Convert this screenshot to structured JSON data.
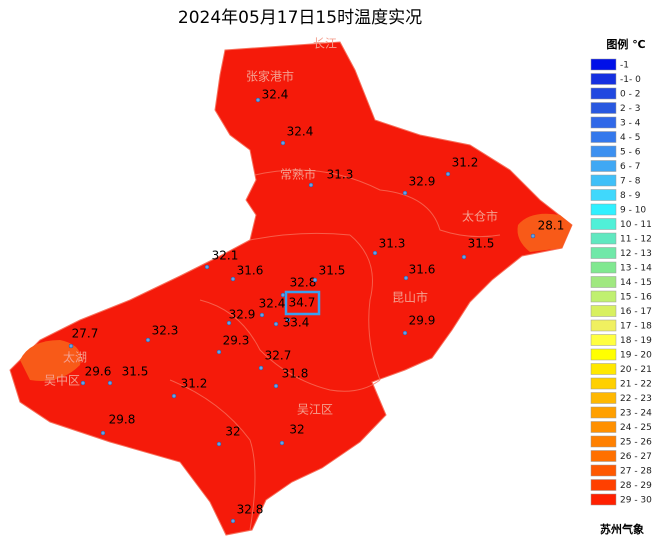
{
  "title": "2024年05月17日15时温度实况",
  "legend": {
    "title": "图例 ℃",
    "items": [
      {
        "label": "-1",
        "color": "#0010e8"
      },
      {
        "label": "-1- 0",
        "color": "#1530e0"
      },
      {
        "label": "0 - 2",
        "color": "#2048e0"
      },
      {
        "label": "2 - 3",
        "color": "#2858e0"
      },
      {
        "label": "3 - 4",
        "color": "#3068e8"
      },
      {
        "label": "4 - 5",
        "color": "#3478ec"
      },
      {
        "label": "5 - 6",
        "color": "#3c90f0"
      },
      {
        "label": "6 - 7",
        "color": "#40a8f4"
      },
      {
        "label": "7 - 8",
        "color": "#40c0f8"
      },
      {
        "label": "8 - 9",
        "color": "#40d8fc"
      },
      {
        "label": "9 - 10",
        "color": "#30f0ff"
      },
      {
        "label": "10 - 11",
        "color": "#50f0d8"
      },
      {
        "label": "11 - 12",
        "color": "#60e8c0"
      },
      {
        "label": "12 - 13",
        "color": "#70e8a8"
      },
      {
        "label": "13 - 14",
        "color": "#80e890"
      },
      {
        "label": "14 - 15",
        "color": "#a0e880"
      },
      {
        "label": "15 - 16",
        "color": "#c0f070"
      },
      {
        "label": "16 - 17",
        "color": "#d8f060"
      },
      {
        "label": "17 - 18",
        "color": "#f0f060"
      },
      {
        "label": "18 - 19",
        "color": "#ffff40"
      },
      {
        "label": "19 - 20",
        "color": "#ffff00"
      },
      {
        "label": "20 - 21",
        "color": "#ffe800"
      },
      {
        "label": "21 - 22",
        "color": "#ffd000"
      },
      {
        "label": "22 - 23",
        "color": "#ffb800"
      },
      {
        "label": "23 - 24",
        "color": "#ffa000"
      },
      {
        "label": "24 - 25",
        "color": "#ff9000"
      },
      {
        "label": "25 - 26",
        "color": "#ff8000"
      },
      {
        "label": "26 - 27",
        "color": "#ff7000"
      },
      {
        "label": "27 - 28",
        "color": "#ff5800"
      },
      {
        "label": "28 - 29",
        "color": "#ff4000"
      },
      {
        "label": "29 - 30",
        "color": "#ff2000"
      }
    ]
  },
  "source": "苏州气象",
  "places": [
    "长江",
    "张家港市",
    "常熟市",
    "太仓市",
    "昆山市",
    "太湖",
    "吴中区",
    "吴江区"
  ],
  "stations": [
    32.4,
    32.4,
    31.3,
    32.9,
    31.2,
    28.1,
    32.1,
    31.6,
    32.8,
    31.5,
    31.3,
    31.5,
    31.6,
    32.4,
    34.7,
    32.9,
    33.4,
    29.9,
    27.7,
    32.3,
    29.3,
    32.7,
    29.6,
    31.5,
    31.8,
    31.2,
    29.8,
    32,
    32,
    32.8
  ]
}
